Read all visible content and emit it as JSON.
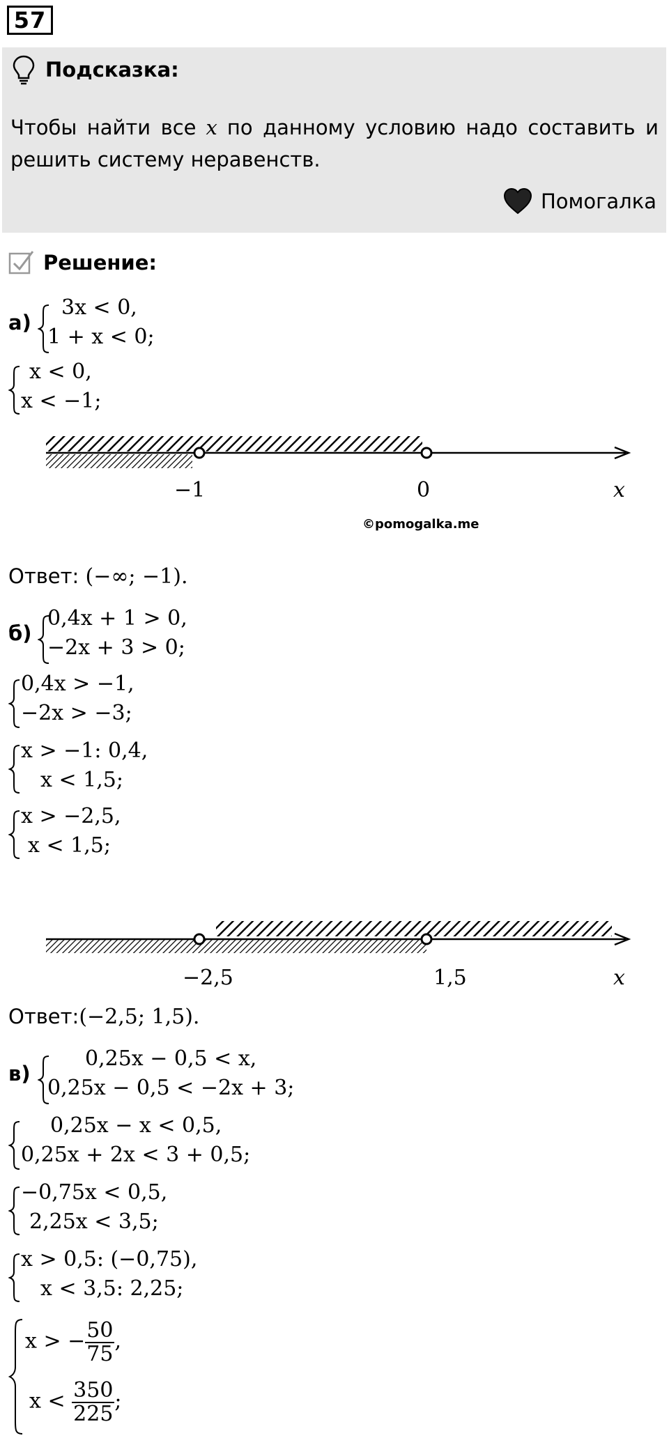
{
  "problem_number": "57",
  "hint": {
    "title": "Подсказка:",
    "text_before": "Чтобы найти все",
    "var": "x",
    "text_after": "по данному условию надо составить и решить систему неравенств.",
    "brand": "Помогалка"
  },
  "solution": {
    "title": "Решение:",
    "a": {
      "label": "а)",
      "sys1": [
        "3x < 0,",
        "1 + x < 0;"
      ],
      "sys2": [
        "x < 0,",
        "x < −1;"
      ],
      "axis_ticks": [
        "−1",
        "0",
        "x"
      ],
      "copyright": "©pomogalka.me",
      "answer_label": "Ответ:",
      "answer": "(−∞; −1)."
    },
    "b": {
      "label": "б)",
      "sys1": [
        "0,4x + 1 > 0,",
        "−2x + 3 > 0;"
      ],
      "sys2": [
        "0,4x > −1,",
        "−2x > −3;"
      ],
      "sys3": [
        "x > −1: 0,4,",
        "x < 1,5;"
      ],
      "sys4": [
        "x > −2,5,",
        "x < 1,5;"
      ],
      "axis_ticks": [
        "−2,5",
        "1,5",
        "x"
      ],
      "answer_label": "Ответ:",
      "answer": "(−2,5; 1,5)."
    },
    "c": {
      "label": "в)",
      "sys1": [
        "0,25x − 0,5 < x,",
        "0,25x − 0,5 < −2x + 3;"
      ],
      "sys2": [
        "0,25x − x < 0,5,",
        "0,25x + 2x < 3 + 0,5;"
      ],
      "sys3": [
        "−0,75x < 0,5,",
        "2,25x < 3,5;"
      ],
      "sys4": [
        "x > 0,5: (−0,75),",
        "x < 3,5: 2,25;"
      ],
      "sys5": {
        "line1_prefix": "x > −",
        "line1_num": "50",
        "line1_den": "75",
        "line1_suffix": ",",
        "line2_prefix": "x <",
        "line2_num": "350",
        "line2_den": "225",
        "line2_suffix": ";"
      }
    }
  }
}
